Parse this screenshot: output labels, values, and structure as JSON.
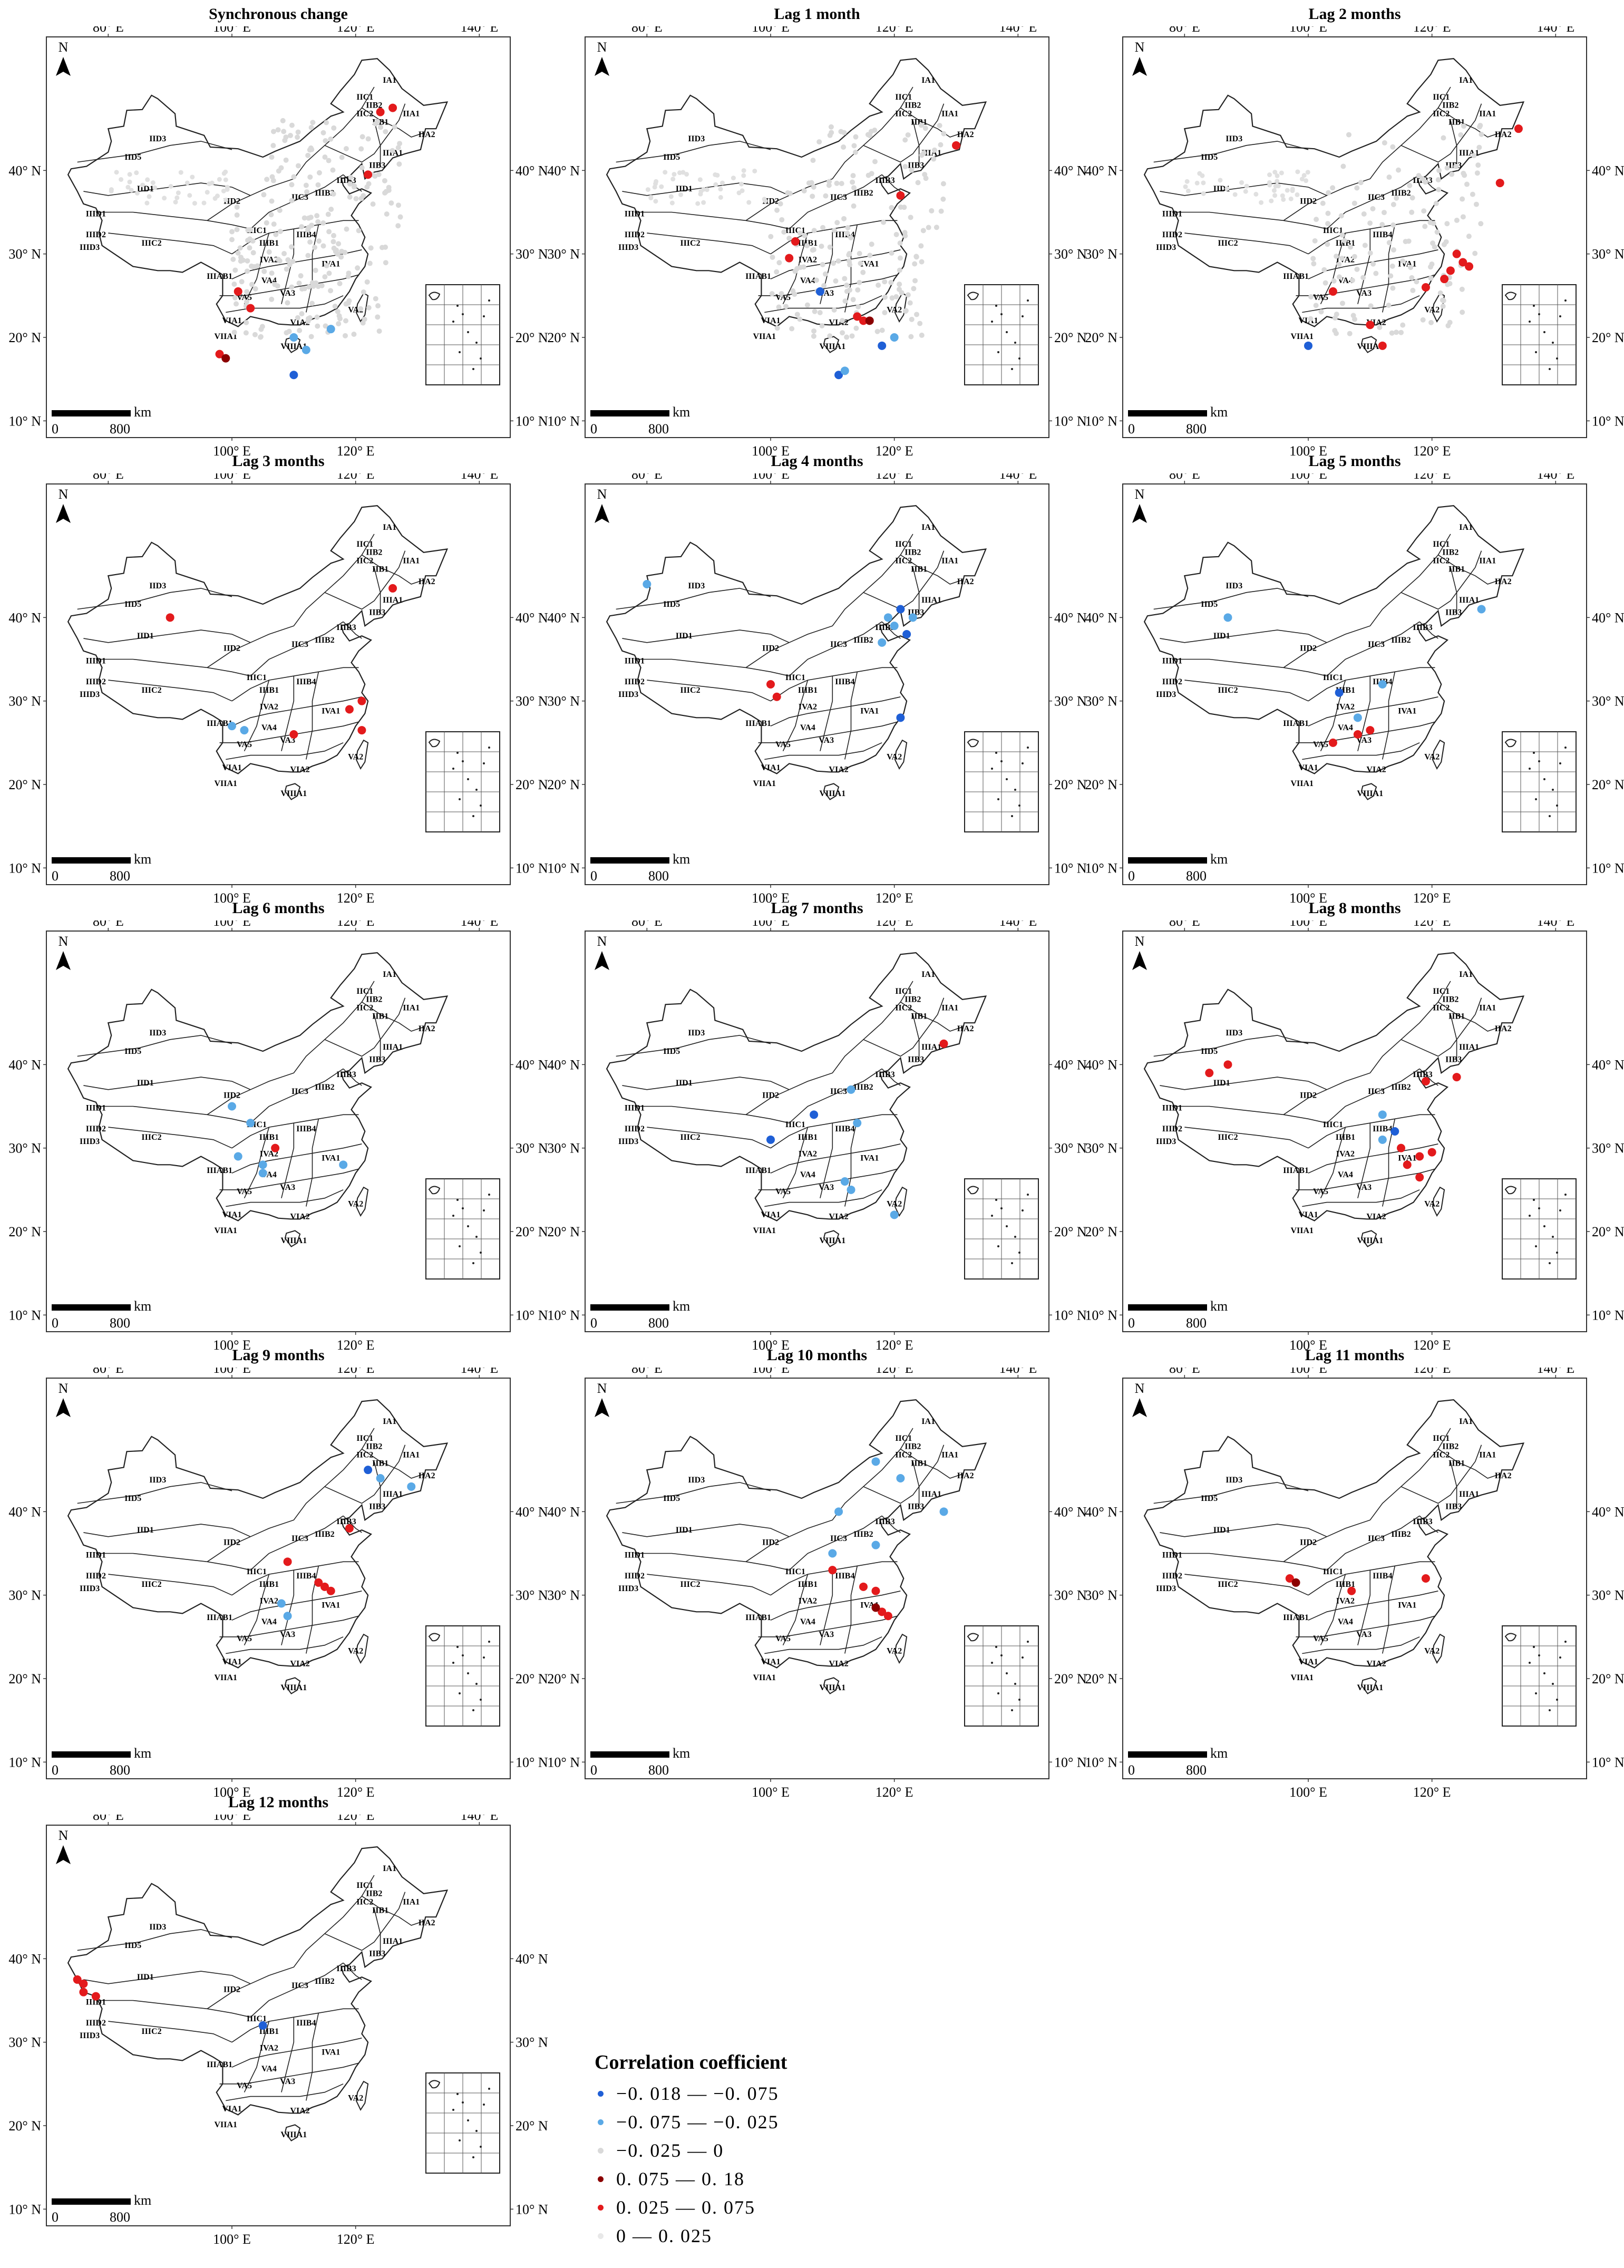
{
  "map_common": {
    "lon_ticks": [
      "80° E",
      "100° E",
      "120° E",
      "140° E"
    ],
    "lat_ticks": [
      "10° N",
      "20° N",
      "30° N",
      "40° N"
    ],
    "north_label": "N",
    "scale_unit": "km",
    "scale_start": "0",
    "scale_end": "800",
    "region_labels": [
      "IA1",
      "IIA1",
      "IIA2",
      "IIB1",
      "IIB2",
      "IIB3",
      "IIC1",
      "IIC2",
      "IIC3",
      "IID1",
      "IID2",
      "IID3",
      "IID5",
      "IIIA1",
      "IIIB1",
      "IIIB2",
      "IIIB3",
      "IIIB4",
      "IIIC1",
      "IIIC2",
      "IIID1",
      "IIID2",
      "IIID3",
      "IVA1",
      "IVA2",
      "VA2",
      "VA3",
      "VA4",
      "VA5",
      "VIA1",
      "VIA2",
      "VIIA1",
      "VIIIA1",
      "IIIAB1"
    ]
  },
  "legend": {
    "title": "Correlation coefficient",
    "items": [
      {
        "label": "−0. 018 — −0. 075",
        "color": "#1f5fd6"
      },
      {
        "label": "−0. 075 — −0. 025",
        "color": "#5aa9e6"
      },
      {
        "label": "−0. 025 — 0",
        "color": "#d9d9d9"
      },
      {
        "label": "0. 075 — 0. 18",
        "color": "#8b0000"
      },
      {
        "label": "0. 025 — 0. 075",
        "color": "#e31a1c"
      },
      {
        "label": "0 — 0. 025",
        "color": "#e8e8e8"
      }
    ]
  },
  "panels": [
    {
      "title": "Synchronous change",
      "points": [
        {
          "lon": 124,
          "lat": 47,
          "c": "#e31a1c"
        },
        {
          "lon": 126,
          "lat": 47.5,
          "c": "#e31a1c"
        },
        {
          "lon": 122,
          "lat": 39.5,
          "c": "#e31a1c"
        },
        {
          "lon": 101,
          "lat": 25.5,
          "c": "#e31a1c"
        },
        {
          "lon": 103,
          "lat": 23.5,
          "c": "#e31a1c"
        },
        {
          "lon": 98,
          "lat": 18,
          "c": "#e31a1c"
        },
        {
          "lon": 99,
          "lat": 17.5,
          "c": "#8b0000"
        },
        {
          "lon": 110,
          "lat": 20,
          "c": "#5aa9e6"
        },
        {
          "lon": 116,
          "lat": 21,
          "c": "#5aa9e6"
        },
        {
          "lon": 112,
          "lat": 18.5,
          "c": "#5aa9e6"
        },
        {
          "lon": 110,
          "lat": 15.5,
          "c": "#1f5fd6"
        }
      ]
    },
    {
      "title": "Lag 1 month",
      "points": [
        {
          "lon": 130,
          "lat": 43,
          "c": "#e31a1c"
        },
        {
          "lon": 121,
          "lat": 37,
          "c": "#e31a1c"
        },
        {
          "lon": 104,
          "lat": 31.5,
          "c": "#e31a1c"
        },
        {
          "lon": 103,
          "lat": 29.5,
          "c": "#e31a1c"
        },
        {
          "lon": 115,
          "lat": 22,
          "c": "#e31a1c"
        },
        {
          "lon": 114,
          "lat": 22.5,
          "c": "#e31a1c"
        },
        {
          "lon": 116,
          "lat": 22,
          "c": "#8b0000"
        },
        {
          "lon": 108,
          "lat": 25.5,
          "c": "#1f5fd6"
        },
        {
          "lon": 118,
          "lat": 19,
          "c": "#1f5fd6"
        },
        {
          "lon": 111,
          "lat": 15.5,
          "c": "#1f5fd6"
        },
        {
          "lon": 112,
          "lat": 16,
          "c": "#5aa9e6"
        },
        {
          "lon": 120,
          "lat": 20,
          "c": "#5aa9e6"
        }
      ]
    },
    {
      "title": "Lag 2 months",
      "points": [
        {
          "lon": 131,
          "lat": 38.5,
          "c": "#e31a1c"
        },
        {
          "lon": 134,
          "lat": 45,
          "c": "#e31a1c"
        },
        {
          "lon": 124,
          "lat": 30,
          "c": "#e31a1c"
        },
        {
          "lon": 125,
          "lat": 29,
          "c": "#e31a1c"
        },
        {
          "lon": 123,
          "lat": 28,
          "c": "#e31a1c"
        },
        {
          "lon": 126,
          "lat": 28.5,
          "c": "#e31a1c"
        },
        {
          "lon": 122,
          "lat": 27,
          "c": "#e31a1c"
        },
        {
          "lon": 119,
          "lat": 26,
          "c": "#e31a1c"
        },
        {
          "lon": 104,
          "lat": 25.5,
          "c": "#e31a1c"
        },
        {
          "lon": 110,
          "lat": 21.5,
          "c": "#e31a1c"
        },
        {
          "lon": 112,
          "lat": 19,
          "c": "#e31a1c"
        },
        {
          "lon": 100,
          "lat": 19,
          "c": "#1f5fd6"
        }
      ]
    },
    {
      "title": "Lag 3 months",
      "points": [
        {
          "lon": 126,
          "lat": 43.5,
          "c": "#e31a1c"
        },
        {
          "lon": 90,
          "lat": 40,
          "c": "#e31a1c"
        },
        {
          "lon": 121,
          "lat": 30,
          "c": "#e31a1c"
        },
        {
          "lon": 119,
          "lat": 29,
          "c": "#e31a1c"
        },
        {
          "lon": 110,
          "lat": 26,
          "c": "#e31a1c"
        },
        {
          "lon": 121,
          "lat": 26.5,
          "c": "#e31a1c"
        },
        {
          "lon": 100,
          "lat": 27,
          "c": "#5aa9e6"
        },
        {
          "lon": 102,
          "lat": 26.5,
          "c": "#5aa9e6"
        }
      ]
    },
    {
      "title": "Lag 4 months",
      "points": [
        {
          "lon": 80,
          "lat": 44,
          "c": "#5aa9e6"
        },
        {
          "lon": 119,
          "lat": 40,
          "c": "#5aa9e6"
        },
        {
          "lon": 120,
          "lat": 39,
          "c": "#5aa9e6"
        },
        {
          "lon": 121,
          "lat": 41,
          "c": "#1f5fd6"
        },
        {
          "lon": 122,
          "lat": 38,
          "c": "#1f5fd6"
        },
        {
          "lon": 118,
          "lat": 37,
          "c": "#5aa9e6"
        },
        {
          "lon": 123,
          "lat": 40,
          "c": "#5aa9e6"
        },
        {
          "lon": 121,
          "lat": 28,
          "c": "#1f5fd6"
        },
        {
          "lon": 100,
          "lat": 32,
          "c": "#e31a1c"
        },
        {
          "lon": 101,
          "lat": 30.5,
          "c": "#e31a1c"
        }
      ]
    },
    {
      "title": "Lag 5 months",
      "points": [
        {
          "lon": 128,
          "lat": 41,
          "c": "#5aa9e6"
        },
        {
          "lon": 87,
          "lat": 40,
          "c": "#5aa9e6"
        },
        {
          "lon": 105,
          "lat": 31,
          "c": "#1f5fd6"
        },
        {
          "lon": 112,
          "lat": 32,
          "c": "#5aa9e6"
        },
        {
          "lon": 108,
          "lat": 28,
          "c": "#5aa9e6"
        },
        {
          "lon": 108,
          "lat": 26,
          "c": "#e31a1c"
        },
        {
          "lon": 110,
          "lat": 26.5,
          "c": "#e31a1c"
        },
        {
          "lon": 104,
          "lat": 25,
          "c": "#e31a1c"
        }
      ]
    },
    {
      "title": "Lag 6 months",
      "points": [
        {
          "lon": 100,
          "lat": 35,
          "c": "#5aa9e6"
        },
        {
          "lon": 103,
          "lat": 33,
          "c": "#5aa9e6"
        },
        {
          "lon": 101,
          "lat": 29,
          "c": "#5aa9e6"
        },
        {
          "lon": 105,
          "lat": 28,
          "c": "#5aa9e6"
        },
        {
          "lon": 105,
          "lat": 27,
          "c": "#5aa9e6"
        },
        {
          "lon": 118,
          "lat": 28,
          "c": "#5aa9e6"
        },
        {
          "lon": 107,
          "lat": 30,
          "c": "#e31a1c"
        }
      ]
    },
    {
      "title": "Lag 7 months",
      "points": [
        {
          "lon": 128,
          "lat": 42.5,
          "c": "#e31a1c"
        },
        {
          "lon": 113,
          "lat": 37,
          "c": "#5aa9e6"
        },
        {
          "lon": 107,
          "lat": 34,
          "c": "#1f5fd6"
        },
        {
          "lon": 100,
          "lat": 31,
          "c": "#1f5fd6"
        },
        {
          "lon": 114,
          "lat": 33,
          "c": "#5aa9e6"
        },
        {
          "lon": 112,
          "lat": 26,
          "c": "#5aa9e6"
        },
        {
          "lon": 113,
          "lat": 25,
          "c": "#5aa9e6"
        },
        {
          "lon": 120,
          "lat": 22,
          "c": "#5aa9e6"
        }
      ]
    },
    {
      "title": "Lag 8 months",
      "points": [
        {
          "lon": 84,
          "lat": 39,
          "c": "#e31a1c"
        },
        {
          "lon": 87,
          "lat": 40,
          "c": "#e31a1c"
        },
        {
          "lon": 119,
          "lat": 38,
          "c": "#e31a1c"
        },
        {
          "lon": 124,
          "lat": 38.5,
          "c": "#e31a1c"
        },
        {
          "lon": 112,
          "lat": 34,
          "c": "#5aa9e6"
        },
        {
          "lon": 114,
          "lat": 32,
          "c": "#1f5fd6"
        },
        {
          "lon": 112,
          "lat": 31,
          "c": "#5aa9e6"
        },
        {
          "lon": 115,
          "lat": 30,
          "c": "#e31a1c"
        },
        {
          "lon": 116,
          "lat": 28,
          "c": "#e31a1c"
        },
        {
          "lon": 118,
          "lat": 29,
          "c": "#e31a1c"
        },
        {
          "lon": 120,
          "lat": 29.5,
          "c": "#e31a1c"
        },
        {
          "lon": 118,
          "lat": 26.5,
          "c": "#e31a1c"
        }
      ]
    },
    {
      "title": "Lag 9 months",
      "points": [
        {
          "lon": 122,
          "lat": 45,
          "c": "#1f5fd6"
        },
        {
          "lon": 124,
          "lat": 44,
          "c": "#5aa9e6"
        },
        {
          "lon": 129,
          "lat": 43,
          "c": "#5aa9e6"
        },
        {
          "lon": 119,
          "lat": 38,
          "c": "#e31a1c"
        },
        {
          "lon": 109,
          "lat": 34,
          "c": "#e31a1c"
        },
        {
          "lon": 115,
          "lat": 31,
          "c": "#e31a1c"
        },
        {
          "lon": 116,
          "lat": 30.5,
          "c": "#e31a1c"
        },
        {
          "lon": 114,
          "lat": 31.5,
          "c": "#e31a1c"
        },
        {
          "lon": 108,
          "lat": 29,
          "c": "#5aa9e6"
        },
        {
          "lon": 109,
          "lat": 27.5,
          "c": "#5aa9e6"
        }
      ]
    },
    {
      "title": "Lag 10 months",
      "points": [
        {
          "lon": 117,
          "lat": 46,
          "c": "#5aa9e6"
        },
        {
          "lon": 121,
          "lat": 44,
          "c": "#5aa9e6"
        },
        {
          "lon": 111,
          "lat": 40,
          "c": "#5aa9e6"
        },
        {
          "lon": 128,
          "lat": 40,
          "c": "#5aa9e6"
        },
        {
          "lon": 117,
          "lat": 36,
          "c": "#5aa9e6"
        },
        {
          "lon": 110,
          "lat": 35,
          "c": "#5aa9e6"
        },
        {
          "lon": 110,
          "lat": 33,
          "c": "#e31a1c"
        },
        {
          "lon": 115,
          "lat": 31,
          "c": "#e31a1c"
        },
        {
          "lon": 117,
          "lat": 30.5,
          "c": "#e31a1c"
        },
        {
          "lon": 118,
          "lat": 28,
          "c": "#e31a1c"
        },
        {
          "lon": 119,
          "lat": 27.5,
          "c": "#e31a1c"
        },
        {
          "lon": 117,
          "lat": 28.5,
          "c": "#8b0000"
        }
      ]
    },
    {
      "title": "Lag 11 months",
      "points": [
        {
          "lon": 97,
          "lat": 32,
          "c": "#e31a1c"
        },
        {
          "lon": 98,
          "lat": 31.5,
          "c": "#8b0000"
        },
        {
          "lon": 107,
          "lat": 30.5,
          "c": "#e31a1c"
        },
        {
          "lon": 119,
          "lat": 32,
          "c": "#e31a1c"
        }
      ]
    },
    {
      "title": "Lag 12 months",
      "points": [
        {
          "lon": 75,
          "lat": 37.5,
          "c": "#e31a1c"
        },
        {
          "lon": 76,
          "lat": 37,
          "c": "#e31a1c"
        },
        {
          "lon": 76,
          "lat": 36,
          "c": "#e31a1c"
        },
        {
          "lon": 78,
          "lat": 35.5,
          "c": "#e31a1c"
        },
        {
          "lon": 105,
          "lat": 32,
          "c": "#1f5fd6"
        }
      ]
    }
  ]
}
